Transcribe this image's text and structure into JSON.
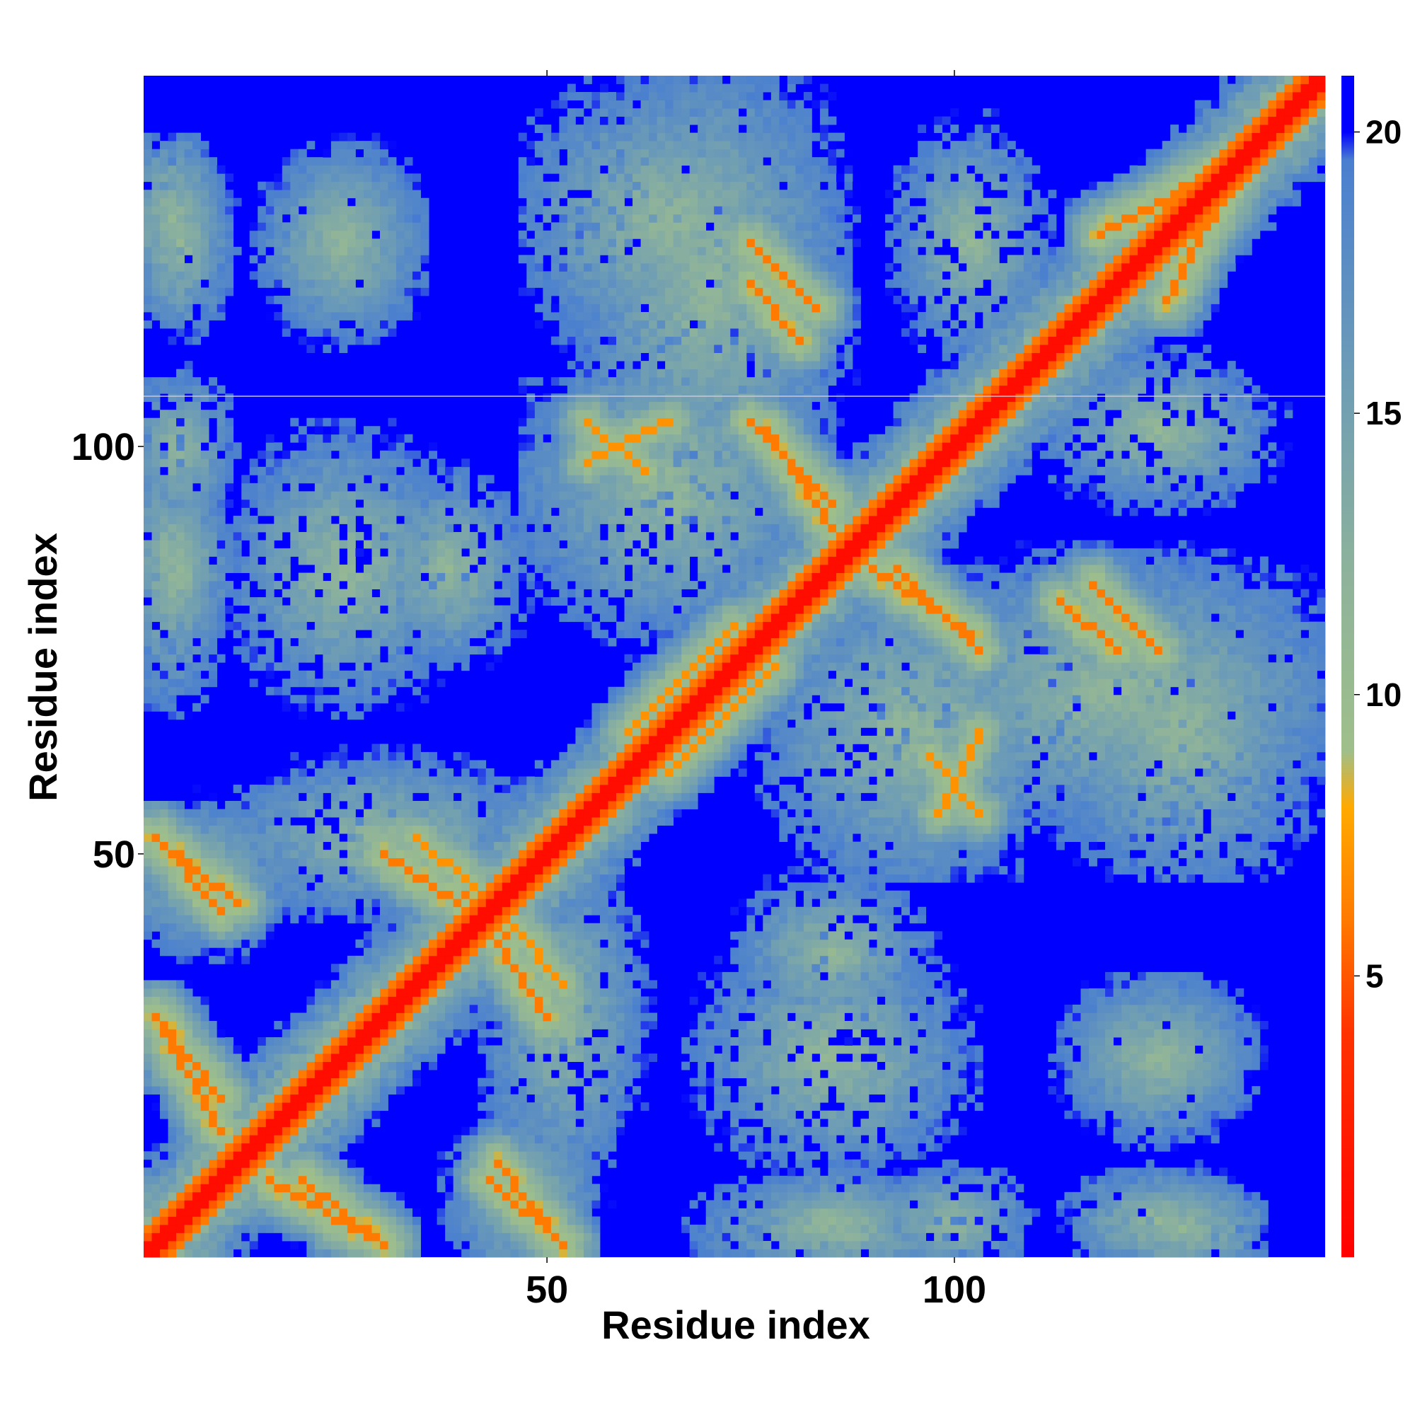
{
  "chart_data": {
    "type": "heatmap",
    "title": "",
    "xlabel": "Residue index",
    "ylabel": "Residue index",
    "n_residues": 145,
    "xlim": [
      1,
      145
    ],
    "ylim": [
      1,
      145
    ],
    "x_ticks": [
      50,
      100
    ],
    "y_ticks": [
      50,
      100
    ],
    "x_tick_labels": [
      "50",
      "100"
    ],
    "y_tick_labels": [
      "50",
      "100"
    ],
    "colorbar": {
      "range": [
        0,
        21
      ],
      "ticks": [
        5,
        10,
        15,
        20
      ],
      "tick_labels": [
        "5",
        "10",
        "15",
        "20"
      ],
      "stops": [
        {
          "value": 0,
          "color": "#ff0000"
        },
        {
          "value": 4,
          "color": "#ff3300"
        },
        {
          "value": 6,
          "color": "#ff7a00"
        },
        {
          "value": 8,
          "color": "#ffaa00"
        },
        {
          "value": 9,
          "color": "#9fbf8a"
        },
        {
          "value": 12,
          "color": "#8fb39a"
        },
        {
          "value": 16,
          "color": "#6a9ab8"
        },
        {
          "value": 19.5,
          "color": "#4a7fd0"
        },
        {
          "value": 20,
          "color": "#0000ff"
        },
        {
          "value": 21,
          "color": "#0000ff"
        }
      ]
    },
    "cutoff_value": 20,
    "colors": {
      "background": "#0000ff",
      "diagonal": "#ff0000",
      "contact_strong": "#ff7a00",
      "contact_weak": "#ffaa00",
      "mid": "#9fbf8a",
      "far": "#5b8fc4"
    },
    "secondary_contact_bands": [
      {
        "i": [
          2,
          12
        ],
        "j": [
          52,
          44
        ],
        "value": 6
      },
      {
        "i": [
          2,
          10
        ],
        "j": [
          30,
          20
        ],
        "value": 6
      },
      {
        "i": [
          16,
          30
        ],
        "j": [
          10,
          2
        ],
        "value": 6
      },
      {
        "i": [
          30,
          45
        ],
        "j": [
          50,
          40
        ],
        "value": 6
      },
      {
        "i": [
          43,
          52
        ],
        "j": [
          10,
          2
        ],
        "value": 6
      },
      {
        "i": [
          45,
          52
        ],
        "j": [
          42,
          34
        ],
        "value": 7
      },
      {
        "i": [
          55,
          65
        ],
        "j": [
          98,
          103
        ],
        "value": 7
      },
      {
        "i": [
          75,
          85
        ],
        "j": [
          103,
          93
        ],
        "value": 6
      },
      {
        "i": [
          75,
          83
        ],
        "j": [
          125,
          117
        ],
        "value": 6
      },
      {
        "i": [
          90,
          102
        ],
        "j": [
          85,
          77
        ],
        "value": 6
      },
      {
        "i": [
          113,
          120
        ],
        "j": [
          81,
          75
        ],
        "value": 6
      },
      {
        "i": [
          97,
          103
        ],
        "j": [
          62,
          55
        ],
        "value": 7
      },
      {
        "i": [
          60,
          73
        ],
        "j": [
          65,
          78
        ],
        "value": 7
      },
      {
        "i": [
          118,
          136
        ],
        "j": [
          126,
          136
        ],
        "value": 6
      }
    ],
    "structured_blocks": [
      {
        "i": [
          1,
          10
        ],
        "j": [
          115,
          135
        ],
        "center": [
          4,
          128
        ]
      },
      {
        "i": [
          18,
          32
        ],
        "j": [
          115,
          135
        ],
        "center": [
          25,
          125
        ]
      },
      {
        "i": [
          50,
          85
        ],
        "j": [
          115,
          145
        ],
        "center": [
          65,
          128
        ]
      },
      {
        "i": [
          95,
          110
        ],
        "j": [
          115,
          140
        ],
        "center": [
          102,
          125
        ]
      },
      {
        "i": [
          1,
          10
        ],
        "j": [
          70,
          100
        ],
        "center": [
          4,
          85
        ]
      },
      {
        "i": [
          15,
          40
        ],
        "j": [
          70,
          100
        ],
        "center": [
          25,
          85
        ]
      },
      {
        "i": [
          50,
          85
        ],
        "j": [
          70,
          105
        ],
        "center": [
          65,
          95
        ]
      },
      {
        "i": [
          90,
          145
        ],
        "j": [
          55,
          85
        ],
        "center": [
          120,
          70
        ]
      },
      {
        "i": [
          15,
          50
        ],
        "j": [
          44,
          60
        ],
        "center": [
          30,
          52
        ]
      },
      {
        "i": [
          75,
          95
        ],
        "j": [
          30,
          45
        ],
        "center": [
          85,
          38
        ]
      },
      {
        "i": [
          115,
          135
        ],
        "j": [
          15,
          32
        ],
        "center": [
          125,
          25
        ]
      },
      {
        "i": [
          75,
          95
        ],
        "j": [
          1,
          10
        ],
        "center": [
          85,
          5
        ]
      },
      {
        "i": [
          115,
          135
        ],
        "j": [
          1,
          10
        ],
        "center": [
          125,
          5
        ]
      },
      {
        "i": [
          95,
          110
        ],
        "j": [
          1,
          10
        ],
        "center": [
          100,
          5
        ]
      },
      {
        "i": [
          40,
          55
        ],
        "j": [
          1,
          20
        ],
        "center": [
          47,
          8
        ]
      }
    ]
  }
}
